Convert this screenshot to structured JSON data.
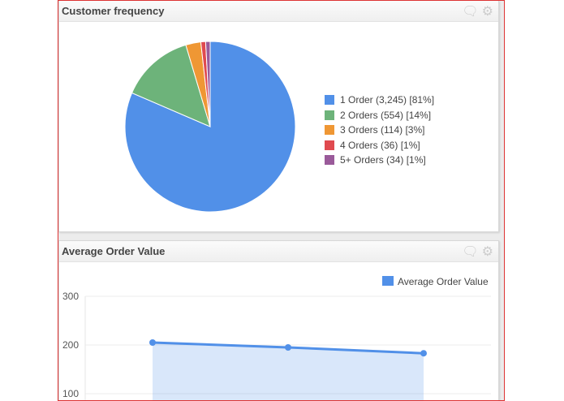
{
  "panels": [
    {
      "title": "Customer frequency",
      "icons": [
        "comment-icon",
        "gear-icon"
      ]
    },
    {
      "title": "Average Order Value",
      "icons": [
        "comment-icon",
        "gear-icon"
      ]
    }
  ],
  "chart_data": [
    {
      "type": "pie",
      "title": "Customer frequency",
      "slices": [
        {
          "label": "1 Order (3,245) [81%]",
          "value": 3245,
          "color": "#5190e8"
        },
        {
          "label": "2 Orders (554) [14%]",
          "value": 554,
          "color": "#6db37a"
        },
        {
          "label": "3 Orders (114) [3%]",
          "value": 114,
          "color": "#ef9734"
        },
        {
          "label": "4 Orders (36) [1%]",
          "value": 36,
          "color": "#e04a4f"
        },
        {
          "label": "5+ Orders (34) [1%]",
          "value": 34,
          "color": "#9a5a9a"
        }
      ],
      "legend": "right"
    },
    {
      "type": "area",
      "title": "Average Order Value",
      "series": [
        {
          "name": "Average Order Value",
          "color": "#5190e8",
          "x": [
            1,
            2,
            3
          ],
          "values": [
            205,
            195,
            183
          ]
        }
      ],
      "yticks": [
        "300",
        "200",
        "100"
      ],
      "ylim": [
        100,
        300
      ],
      "grid": true,
      "legend": "top-right"
    }
  ]
}
